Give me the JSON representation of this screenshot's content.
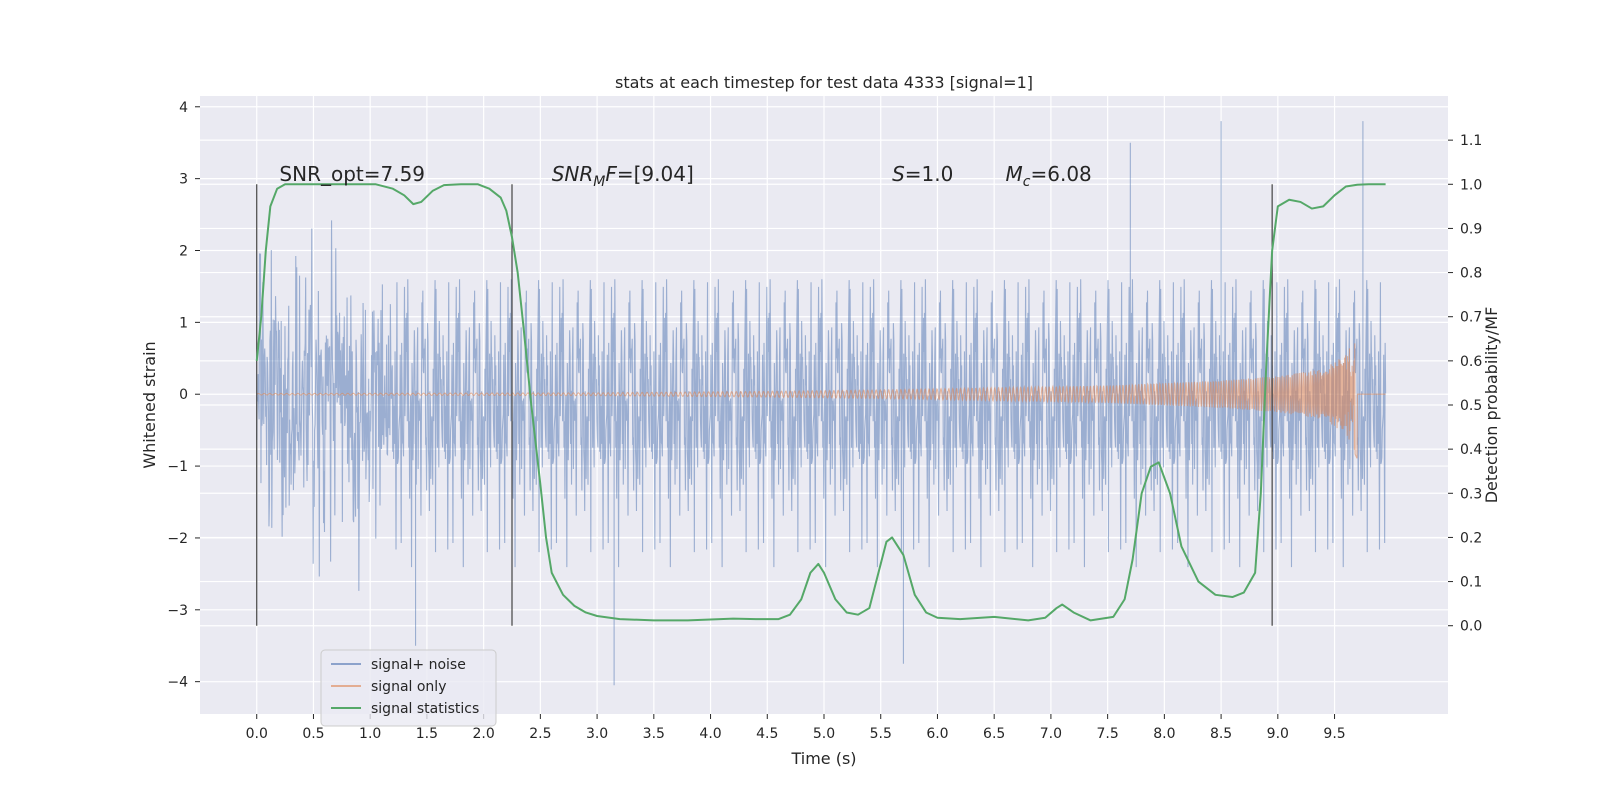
{
  "chart_data": {
    "type": "line",
    "title": "stats at each timestep for test data 4333 [signal=1]",
    "xlabel": "Time (s)",
    "ylabel": "Whitened strain",
    "y2label": "Detection probability/MF",
    "xlim": [
      -0.5,
      10.5
    ],
    "ylim": [
      -4.45,
      4.15
    ],
    "y2lim": [
      -0.2,
      1.2
    ],
    "xticks": [
      "0.0",
      "0.5",
      "1.0",
      "1.5",
      "2.0",
      "2.5",
      "3.0",
      "3.5",
      "4.0",
      "4.5",
      "5.0",
      "5.5",
      "6.0",
      "6.5",
      "7.0",
      "7.5",
      "8.0",
      "8.5",
      "9.0",
      "9.5"
    ],
    "yticks": [
      "4",
      "3",
      "2",
      "1",
      "0",
      "−1",
      "−2",
      "−3",
      "−4"
    ],
    "y2ticks": [
      "0.0",
      "0.1",
      "0.2",
      "0.3",
      "0.4",
      "0.5",
      "0.6",
      "0.7",
      "0.8",
      "0.9",
      "1.0",
      "1.1"
    ],
    "grid": true,
    "legend_position": "lower-left",
    "annotations": [
      {
        "text": "SNR_opt=7.59",
        "x": 0.2
      },
      {
        "text": "SNR_MF=[9.04]",
        "x": 2.6
      },
      {
        "text": "S=1.0",
        "x": 5.6
      },
      {
        "text": "M_c=6.08",
        "x": 6.6
      }
    ],
    "vlines": [
      0.0,
      2.25,
      8.95
    ],
    "vline_range_y2": [
      0.0,
      1.0
    ],
    "series": [
      {
        "name": "signal+ noise",
        "axis": "left",
        "color": "#4c72b0",
        "x_range": [
          0.0,
          9.95
        ],
        "typical_envelope": [
          -1.3,
          1.4
        ],
        "peaks": [
          {
            "x": 1.4,
            "y": -3.5
          },
          {
            "x": 3.15,
            "y": -4.05
          },
          {
            "x": 5.7,
            "y": -3.75
          },
          {
            "x": 8.5,
            "y": 3.8
          },
          {
            "x": 9.75,
            "y": 3.8
          },
          {
            "x": 7.7,
            "y": 3.5
          }
        ]
      },
      {
        "name": "signal only",
        "axis": "left",
        "color": "#dd8452",
        "x_range": [
          0.0,
          9.95
        ],
        "chirp_end": 9.7,
        "envelope": [
          [
            0.0,
            0.01
          ],
          [
            3.0,
            0.02
          ],
          [
            4.5,
            0.04
          ],
          [
            5.5,
            0.06
          ],
          [
            6.5,
            0.09
          ],
          [
            7.5,
            0.12
          ],
          [
            8.5,
            0.19
          ],
          [
            9.0,
            0.25
          ],
          [
            9.4,
            0.35
          ],
          [
            9.6,
            0.55
          ],
          [
            9.7,
            0.9
          ]
        ]
      },
      {
        "name": "signal statistics",
        "axis": "right",
        "color": "#55a868",
        "x": [
          0.0,
          0.04,
          0.08,
          0.12,
          0.18,
          0.25,
          0.35,
          0.5,
          0.7,
          0.9,
          1.05,
          1.2,
          1.3,
          1.38,
          1.45,
          1.55,
          1.65,
          1.8,
          1.95,
          2.05,
          2.15,
          2.2,
          2.25,
          2.3,
          2.35,
          2.42,
          2.5,
          2.55,
          2.6,
          2.7,
          2.8,
          2.9,
          3.0,
          3.2,
          3.5,
          3.8,
          4.0,
          4.2,
          4.4,
          4.6,
          4.7,
          4.8,
          4.88,
          4.95,
          5.0,
          5.1,
          5.2,
          5.3,
          5.4,
          5.5,
          5.55,
          5.6,
          5.7,
          5.8,
          5.9,
          6.0,
          6.2,
          6.5,
          6.8,
          6.95,
          7.05,
          7.1,
          7.2,
          7.35,
          7.55,
          7.65,
          7.72,
          7.8,
          7.88,
          7.95,
          8.05,
          8.15,
          8.3,
          8.45,
          8.6,
          8.7,
          8.8,
          8.85,
          8.9,
          8.95,
          9.0,
          9.1,
          9.2,
          9.3,
          9.4,
          9.5,
          9.6,
          9.7,
          9.8,
          9.95
        ],
        "y": [
          0.6,
          0.7,
          0.85,
          0.95,
          0.99,
          1.0,
          1.0,
          1.0,
          1.0,
          1.0,
          1.0,
          0.99,
          0.975,
          0.955,
          0.96,
          0.985,
          0.998,
          1.0,
          1.0,
          0.99,
          0.97,
          0.94,
          0.88,
          0.8,
          0.68,
          0.5,
          0.32,
          0.2,
          0.12,
          0.07,
          0.045,
          0.03,
          0.022,
          0.015,
          0.012,
          0.012,
          0.014,
          0.016,
          0.015,
          0.015,
          0.025,
          0.06,
          0.12,
          0.14,
          0.12,
          0.06,
          0.03,
          0.025,
          0.04,
          0.14,
          0.19,
          0.2,
          0.16,
          0.07,
          0.03,
          0.018,
          0.015,
          0.02,
          0.012,
          0.018,
          0.04,
          0.048,
          0.03,
          0.012,
          0.02,
          0.06,
          0.15,
          0.3,
          0.36,
          0.37,
          0.3,
          0.18,
          0.1,
          0.07,
          0.065,
          0.075,
          0.12,
          0.3,
          0.6,
          0.85,
          0.95,
          0.965,
          0.96,
          0.945,
          0.95,
          0.975,
          0.995,
          0.999,
          1.0,
          1.0
        ]
      }
    ]
  }
}
